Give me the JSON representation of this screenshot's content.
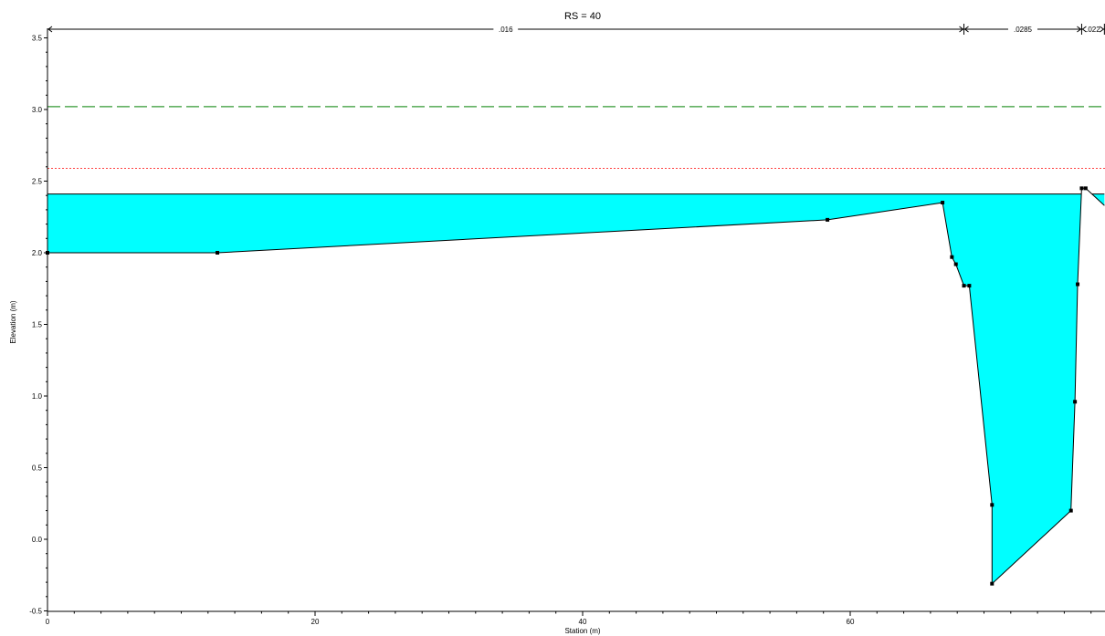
{
  "chart_data": {
    "type": "area",
    "title": "RS = 40",
    "xlabel": "Station (m)",
    "ylabel": "Elevation (m)",
    "xlim": [
      0,
      79
    ],
    "ylim": [
      -0.5,
      3.58
    ],
    "x_ticks": [
      0,
      20,
      40,
      60
    ],
    "x_tick_labels": [
      "0",
      "20",
      "40",
      "60"
    ],
    "y_ticks": [
      -0.5,
      0.0,
      0.5,
      1.0,
      1.5,
      2.0,
      2.5,
      3.0,
      3.5
    ],
    "y_tick_labels": [
      "-0.5",
      "0.0",
      "0.5",
      "1.0",
      "1.5",
      "2.0",
      "2.5",
      "3.0",
      "3.5"
    ],
    "grid": false,
    "ground_profile": [
      [
        0,
        2.0
      ],
      [
        12.7,
        2.0
      ],
      [
        58.3,
        2.23
      ],
      [
        66.9,
        2.35
      ],
      [
        67.6,
        1.97
      ],
      [
        67.9,
        1.92
      ],
      [
        68.5,
        1.77
      ],
      [
        68.9,
        1.77
      ],
      [
        70.6,
        0.24
      ],
      [
        70.6,
        -0.31
      ],
      [
        76.5,
        0.2
      ],
      [
        76.8,
        0.96
      ],
      [
        77.0,
        1.78
      ],
      [
        77.3,
        2.45
      ],
      [
        77.6,
        2.45
      ],
      [
        79.0,
        2.33
      ]
    ],
    "ground_points_marked": [
      [
        0,
        2.0
      ],
      [
        12.7,
        2.0
      ],
      [
        58.3,
        2.23
      ],
      [
        66.9,
        2.35
      ],
      [
        67.6,
        1.97
      ],
      [
        67.9,
        1.92
      ],
      [
        68.5,
        1.77
      ],
      [
        68.9,
        1.77
      ],
      [
        70.6,
        0.24
      ],
      [
        70.6,
        -0.31
      ],
      [
        76.5,
        0.2
      ],
      [
        76.8,
        0.96
      ],
      [
        77.0,
        1.78
      ],
      [
        77.3,
        2.45
      ],
      [
        77.6,
        2.45
      ]
    ],
    "water_surface": 2.41,
    "energy_grade_line": 3.02,
    "critical_water_surface": 2.59,
    "manning_n": [
      {
        "label": ".016",
        "from": 0,
        "to": 68.5
      },
      {
        "label": ".0285",
        "from": 68.5,
        "to": 77.3
      },
      {
        "label": ".022",
        "from": 77.3,
        "to": 79
      }
    ],
    "colors": {
      "water_fill": "#00ffff",
      "ground_line": "#000000",
      "egl": "#339933",
      "critical_ws": "#ff0000"
    }
  }
}
